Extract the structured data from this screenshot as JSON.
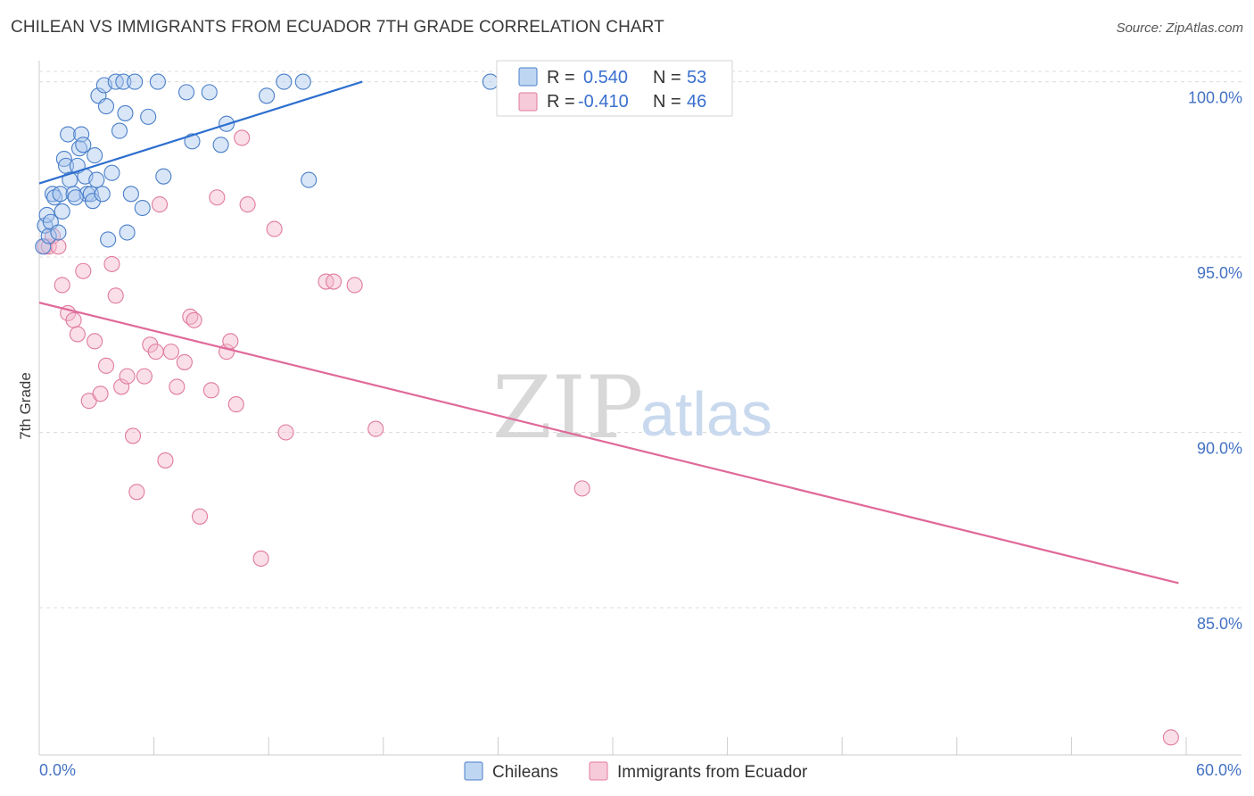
{
  "title": "CHILEAN VS IMMIGRANTS FROM ECUADOR 7TH GRADE CORRELATION CHART",
  "source": "Source: ZipAtlas.com",
  "watermark": {
    "zip": "ZIP",
    "atlas": "atlas"
  },
  "colors": {
    "blue_fill": "#aac8ee",
    "blue_stroke": "#4a7fc9",
    "blue_line": "#2d6fcf",
    "pink_fill": "#f4b8cc",
    "pink_stroke": "#e07a9f",
    "pink_line": "#e0699a",
    "tick_label": "#4472c4",
    "grid": "#dcdcdc"
  },
  "legend": {
    "r_label": "R =",
    "n_label": "N =",
    "rows": [
      {
        "r": "0.540",
        "n": "53",
        "series": "Chileans"
      },
      {
        "r": "-0.410",
        "n": "46",
        "series": "Immigrants from Ecuador"
      }
    ]
  },
  "chart_data": {
    "type": "scatter",
    "title": "CHILEAN VS IMMIGRANTS FROM ECUADOR 7TH GRADE CORRELATION CHART",
    "xlabel": "",
    "ylabel": "7th Grade",
    "xlim": [
      0,
      60
    ],
    "ylim": [
      80.8,
      100.6
    ],
    "x_tick_labels": [
      "0.0%",
      "60.0%"
    ],
    "y_ticks": [
      85,
      90,
      95,
      100
    ],
    "y_tick_labels": [
      "85.0%",
      "90.0%",
      "95.0%",
      "100.0%"
    ],
    "grid": true,
    "legend_position": "top-center",
    "series": [
      {
        "name": "Chileans",
        "trend": {
          "x": [
            0,
            16.9
          ],
          "y": [
            97.1,
            100.0
          ]
        },
        "points": [
          [
            0.2,
            95.3
          ],
          [
            0.3,
            95.9
          ],
          [
            0.4,
            96.2
          ],
          [
            0.5,
            95.6
          ],
          [
            0.6,
            96.0
          ],
          [
            0.7,
            96.8
          ],
          [
            0.8,
            96.7
          ],
          [
            1.0,
            95.7
          ],
          [
            1.1,
            96.8
          ],
          [
            1.2,
            96.3
          ],
          [
            1.3,
            97.8
          ],
          [
            1.4,
            97.6
          ],
          [
            1.5,
            98.5
          ],
          [
            1.6,
            97.2
          ],
          [
            1.8,
            96.8
          ],
          [
            2.0,
            97.6
          ],
          [
            2.1,
            98.1
          ],
          [
            2.2,
            98.5
          ],
          [
            2.3,
            98.2
          ],
          [
            2.4,
            97.3
          ],
          [
            2.5,
            96.8
          ],
          [
            2.7,
            96.8
          ],
          [
            2.8,
            96.6
          ],
          [
            2.9,
            97.9
          ],
          [
            3.0,
            97.2
          ],
          [
            3.1,
            99.6
          ],
          [
            3.3,
            96.8
          ],
          [
            3.4,
            99.9
          ],
          [
            3.5,
            99.3
          ],
          [
            3.6,
            95.5
          ],
          [
            3.8,
            97.4
          ],
          [
            4.0,
            100.0
          ],
          [
            4.2,
            98.6
          ],
          [
            4.4,
            100.0
          ],
          [
            4.5,
            99.1
          ],
          [
            4.8,
            96.8
          ],
          [
            5.0,
            100.0
          ],
          [
            5.4,
            96.4
          ],
          [
            5.7,
            99.0
          ],
          [
            6.2,
            100.0
          ],
          [
            6.5,
            97.3
          ],
          [
            7.7,
            99.7
          ],
          [
            8.0,
            98.3
          ],
          [
            8.9,
            99.7
          ],
          [
            9.5,
            98.2
          ],
          [
            9.8,
            98.8
          ],
          [
            11.9,
            99.6
          ],
          [
            12.8,
            100.0
          ],
          [
            13.8,
            100.0
          ],
          [
            14.1,
            97.2
          ],
          [
            23.6,
            100.0
          ],
          [
            4.6,
            95.7
          ],
          [
            1.9,
            96.7
          ]
        ]
      },
      {
        "name": "Immigrants from Ecuador",
        "trend": {
          "x": [
            0,
            59.6
          ],
          "y": [
            93.7,
            85.7
          ]
        },
        "points": [
          [
            0.3,
            95.3
          ],
          [
            0.5,
            95.3
          ],
          [
            0.7,
            95.6
          ],
          [
            1.0,
            95.3
          ],
          [
            1.2,
            94.2
          ],
          [
            1.5,
            93.4
          ],
          [
            1.8,
            93.2
          ],
          [
            2.0,
            92.8
          ],
          [
            2.3,
            94.6
          ],
          [
            2.6,
            90.9
          ],
          [
            2.9,
            92.6
          ],
          [
            3.2,
            91.1
          ],
          [
            3.5,
            91.9
          ],
          [
            3.8,
            94.8
          ],
          [
            4.0,
            93.9
          ],
          [
            4.3,
            91.3
          ],
          [
            4.6,
            91.6
          ],
          [
            4.9,
            89.9
          ],
          [
            5.1,
            88.3
          ],
          [
            5.5,
            91.6
          ],
          [
            5.8,
            92.5
          ],
          [
            6.1,
            92.3
          ],
          [
            6.3,
            96.5
          ],
          [
            6.6,
            89.2
          ],
          [
            6.9,
            92.3
          ],
          [
            7.2,
            91.3
          ],
          [
            7.6,
            92.0
          ],
          [
            7.9,
            93.3
          ],
          [
            8.1,
            93.2
          ],
          [
            8.4,
            87.6
          ],
          [
            9.0,
            91.2
          ],
          [
            9.3,
            96.7
          ],
          [
            9.8,
            92.3
          ],
          [
            10.0,
            92.6
          ],
          [
            10.3,
            90.8
          ],
          [
            10.6,
            98.4
          ],
          [
            10.9,
            96.5
          ],
          [
            11.6,
            86.4
          ],
          [
            12.3,
            95.8
          ],
          [
            12.9,
            90.0
          ],
          [
            15.0,
            94.3
          ],
          [
            15.4,
            94.3
          ],
          [
            16.5,
            94.2
          ],
          [
            17.6,
            90.1
          ],
          [
            28.4,
            88.4
          ],
          [
            59.2,
            81.3
          ]
        ]
      }
    ]
  },
  "bottom_legend": [
    "Chileans",
    "Immigrants from Ecuador"
  ]
}
